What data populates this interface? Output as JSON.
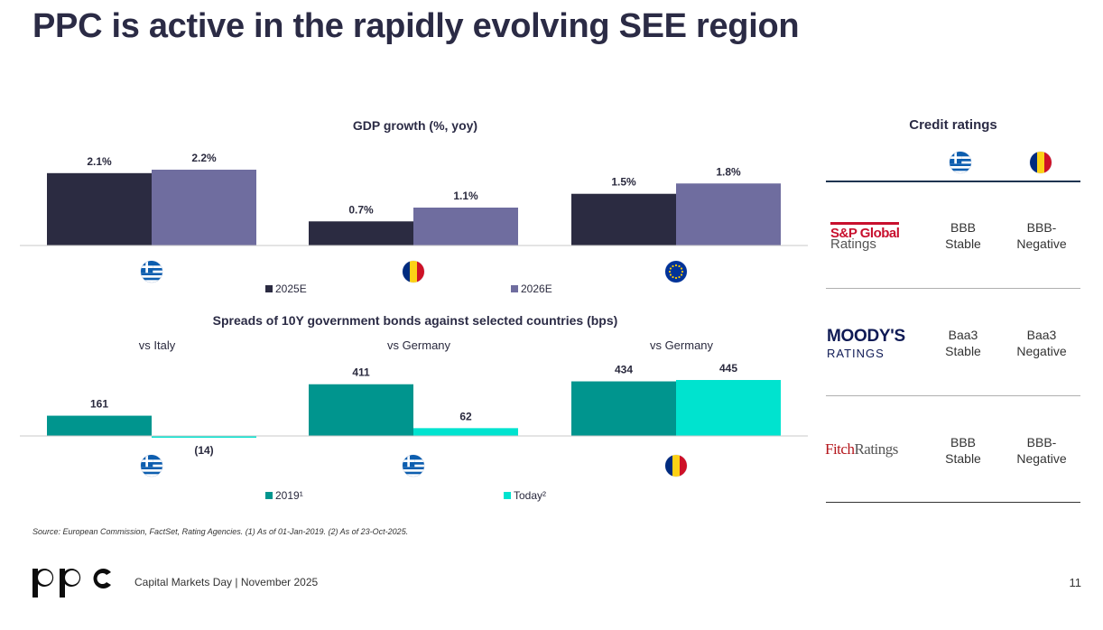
{
  "title": "PPC is active in the rapidly evolving SEE region",
  "chart_data": [
    {
      "type": "bar",
      "title": "GDP growth (%, yoy)",
      "categories": [
        "Greece",
        "Romania",
        "EU"
      ],
      "category_icons": [
        "greece-flag",
        "romania-flag",
        "eu-flag"
      ],
      "series": [
        {
          "name": "2025E",
          "values": [
            2.1,
            0.7,
            1.5
          ],
          "labels": [
            "2.1%",
            "0.7%",
            "1.5%"
          ],
          "color": "#2b2b41"
        },
        {
          "name": "2026E",
          "values": [
            2.2,
            1.1,
            1.8
          ],
          "labels": [
            "2.2%",
            "1.1%",
            "1.8%"
          ],
          "color": "#6f6d9f"
        }
      ],
      "ylim": [
        0,
        2.2
      ]
    },
    {
      "type": "bar",
      "title": "Spreads of 10Y government bonds against selected countries (bps)",
      "categories": [
        "Greece",
        "Greece",
        "Romania"
      ],
      "category_labels": [
        "vs Italy",
        "vs Germany",
        "vs Germany"
      ],
      "category_icons": [
        "greece-flag",
        "greece-flag",
        "romania-flag"
      ],
      "series": [
        {
          "name": "2019¹",
          "values": [
            161,
            411,
            434
          ],
          "labels": [
            "161",
            "411",
            "434"
          ],
          "color": "#00958e"
        },
        {
          "name": "Today²",
          "values": [
            -14,
            62,
            445
          ],
          "labels": [
            "(14)",
            "62",
            "445"
          ],
          "color": "#00e3cf"
        }
      ],
      "ylim": [
        -14,
        445
      ]
    }
  ],
  "credit_ratings": {
    "title": "Credit ratings",
    "columns": [
      "greece-flag",
      "romania-flag"
    ],
    "agencies": [
      {
        "name": "S&P Global",
        "sub": "Ratings",
        "ratings": [
          [
            "BBB",
            "Stable"
          ],
          [
            "BBB-",
            "Negative"
          ]
        ]
      },
      {
        "name": "MOODY'S",
        "sub": "RATINGS",
        "ratings": [
          [
            "Baa3",
            "Stable"
          ],
          [
            "Baa3",
            "Negative"
          ]
        ]
      },
      {
        "name_a": "Fitch",
        "name_b": "Ratings",
        "ratings": [
          [
            "BBB",
            "Stable"
          ],
          [
            "BBB-",
            "Negative"
          ]
        ]
      }
    ]
  },
  "source": "Source: European Commission, FactSet, Rating Agencies. (1) As of 01-Jan-2019. (2) As of 23-Oct-2025.",
  "footer": "Capital Markets Day | November 2025",
  "page_number": "11",
  "colors": {
    "navy": "#2b2b41",
    "purple": "#6f6d9f",
    "teal": "#00958e",
    "aqua": "#00e3cf",
    "title": "#2b2b45"
  }
}
